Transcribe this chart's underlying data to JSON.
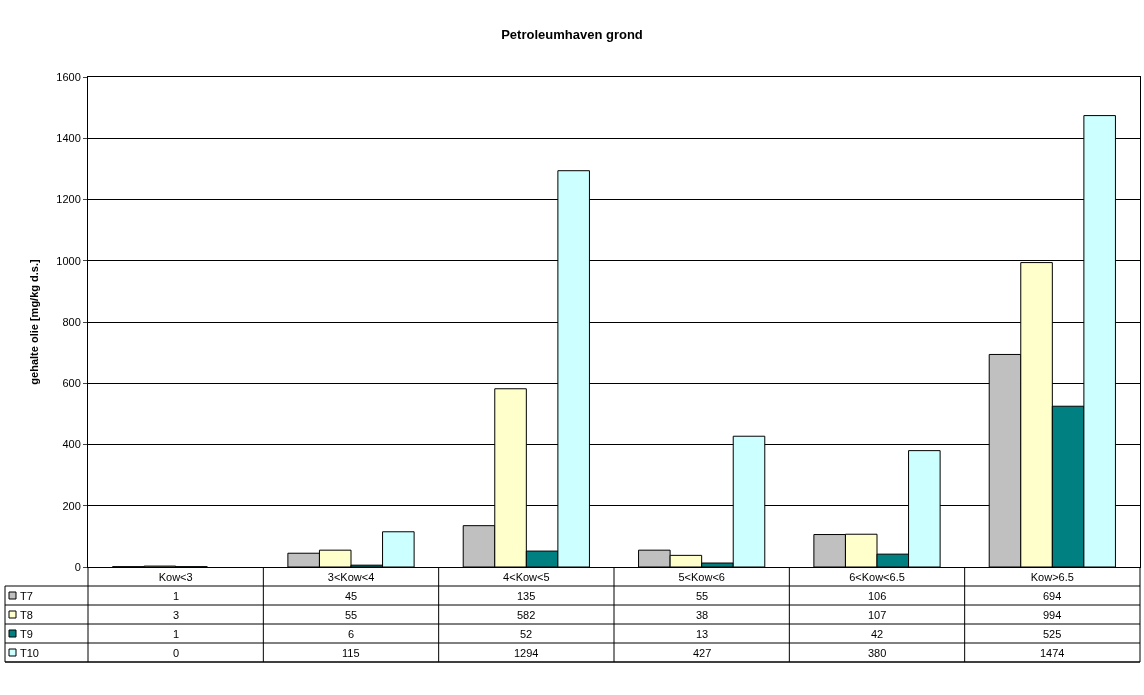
{
  "chart_data": {
    "type": "bar",
    "title": "Petroleumhaven grond",
    "ylabel": "gehalte olie [mg/kg d.s.]",
    "categories": [
      "Kow<3",
      "3<Kow<4",
      "4<Kow<5",
      "5<Kow<6",
      "6<Kow<6.5",
      "Kow>6.5"
    ],
    "series": [
      {
        "name": "T7",
        "color": "#c0c0c0",
        "values": [
          1,
          45,
          135,
          55,
          106,
          694
        ]
      },
      {
        "name": "T8",
        "color": "#ffffcc",
        "values": [
          3,
          55,
          582,
          38,
          107,
          994
        ]
      },
      {
        "name": "T9",
        "color": "#008080",
        "values": [
          1,
          6,
          52,
          13,
          42,
          525
        ]
      },
      {
        "name": "T10",
        "color": "#ccffff",
        "values": [
          0,
          115,
          1294,
          427,
          380,
          1474
        ]
      }
    ],
    "ylim": [
      0,
      1600
    ],
    "yticks": [
      0,
      200,
      400,
      600,
      800,
      1000,
      1200,
      1400,
      1600
    ],
    "grid": "y",
    "legend": "bottom left",
    "data_labels": true
  }
}
